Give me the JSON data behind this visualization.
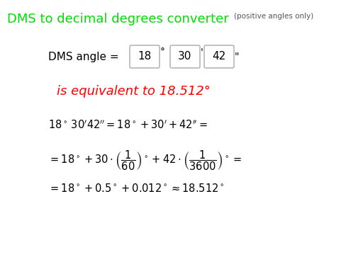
{
  "title": "DMS to decimal degrees converter",
  "subtitle": "(positive angles only)",
  "title_color": "#00dd00",
  "subtitle_color": "#555555",
  "result_text": "is equivalent to 18.512°",
  "result_color": "#ff0000",
  "bg_color": "#ffffff",
  "text_color": "#000000",
  "box_edge_color": "#aaaaaa",
  "font_size_title": 13,
  "font_size_subtitle": 7.5,
  "font_size_input_label": 11,
  "font_size_input_val": 11,
  "font_size_result": 13,
  "font_size_formula": 10.5
}
